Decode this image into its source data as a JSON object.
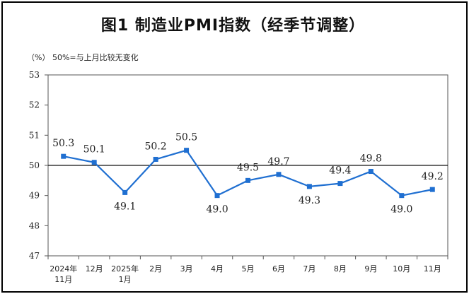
{
  "chart_data": {
    "type": "line",
    "title": "图1  制造业PMI指数（经季节调整）",
    "unit_note": "（%）  50%=与上月比较无变化",
    "categories": [
      [
        "2024年",
        "11月"
      ],
      [
        "12月"
      ],
      [
        "2025年",
        "1月"
      ],
      [
        "2月"
      ],
      [
        "3月"
      ],
      [
        "4月"
      ],
      [
        "5月"
      ],
      [
        "6月"
      ],
      [
        "7月"
      ],
      [
        "8月"
      ],
      [
        "9月"
      ],
      [
        "10月"
      ],
      [
        "11月"
      ]
    ],
    "series": [
      {
        "values": [
          50.3,
          50.1,
          49.1,
          50.2,
          50.5,
          49.0,
          49.5,
          49.7,
          49.3,
          49.4,
          49.8,
          49.0,
          49.2
        ]
      }
    ],
    "data_labels": [
      "50.3",
      "50.1",
      "49.1",
      "50.2",
      "50.5",
      "49.0",
      "49.5",
      "49.7",
      "49.3",
      "49.4",
      "49.8",
      "49.0",
      "49.2"
    ],
    "y_ticks": [
      "47",
      "48",
      "49",
      "50",
      "51",
      "52",
      "53"
    ],
    "ylim": [
      47,
      53
    ],
    "reference_line": 50,
    "grid": false,
    "legend": "none",
    "line_color": "#1f6fd1",
    "marker_color": "#1f6fd1"
  }
}
